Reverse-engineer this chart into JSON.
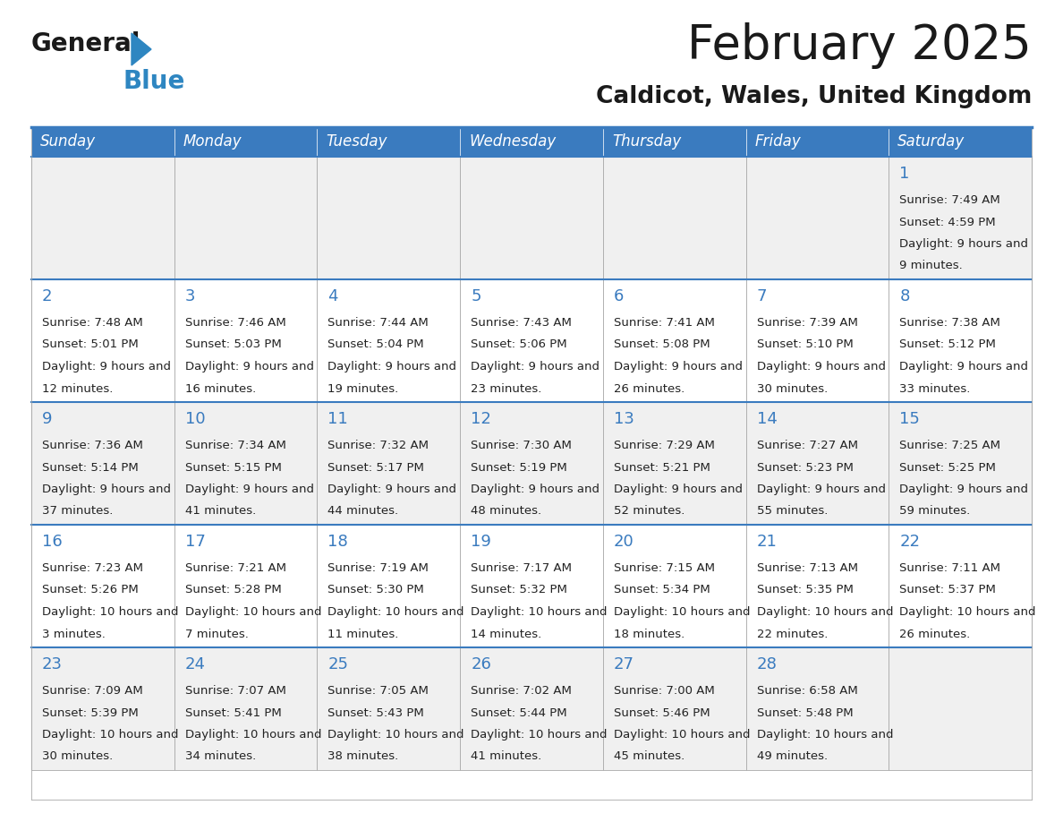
{
  "title": "February 2025",
  "subtitle": "Caldicot, Wales, United Kingdom",
  "header_bg_color": "#3a7bbf",
  "header_text_color": "#FFFFFF",
  "days_of_week": [
    "Sunday",
    "Monday",
    "Tuesday",
    "Wednesday",
    "Thursday",
    "Friday",
    "Saturday"
  ],
  "cell_bg_row0": "#F0F0F0",
  "cell_bg_row1": "#FFFFFF",
  "cell_border_color": "#AAAAAA",
  "header_border_color": "#3a7bbf",
  "title_color": "#1a1a1a",
  "subtitle_color": "#1a1a1a",
  "day_num_color": "#3a7bbf",
  "info_color": "#222222",
  "calendar_data": [
    [
      null,
      null,
      null,
      null,
      null,
      null,
      {
        "day": 1,
        "sunrise": "7:49 AM",
        "sunset": "4:59 PM",
        "daylight": "9 hours and 9 minutes"
      }
    ],
    [
      {
        "day": 2,
        "sunrise": "7:48 AM",
        "sunset": "5:01 PM",
        "daylight": "9 hours and 12 minutes"
      },
      {
        "day": 3,
        "sunrise": "7:46 AM",
        "sunset": "5:03 PM",
        "daylight": "9 hours and 16 minutes"
      },
      {
        "day": 4,
        "sunrise": "7:44 AM",
        "sunset": "5:04 PM",
        "daylight": "9 hours and 19 minutes"
      },
      {
        "day": 5,
        "sunrise": "7:43 AM",
        "sunset": "5:06 PM",
        "daylight": "9 hours and 23 minutes"
      },
      {
        "day": 6,
        "sunrise": "7:41 AM",
        "sunset": "5:08 PM",
        "daylight": "9 hours and 26 minutes"
      },
      {
        "day": 7,
        "sunrise": "7:39 AM",
        "sunset": "5:10 PM",
        "daylight": "9 hours and 30 minutes"
      },
      {
        "day": 8,
        "sunrise": "7:38 AM",
        "sunset": "5:12 PM",
        "daylight": "9 hours and 33 minutes"
      }
    ],
    [
      {
        "day": 9,
        "sunrise": "7:36 AM",
        "sunset": "5:14 PM",
        "daylight": "9 hours and 37 minutes"
      },
      {
        "day": 10,
        "sunrise": "7:34 AM",
        "sunset": "5:15 PM",
        "daylight": "9 hours and 41 minutes"
      },
      {
        "day": 11,
        "sunrise": "7:32 AM",
        "sunset": "5:17 PM",
        "daylight": "9 hours and 44 minutes"
      },
      {
        "day": 12,
        "sunrise": "7:30 AM",
        "sunset": "5:19 PM",
        "daylight": "9 hours and 48 minutes"
      },
      {
        "day": 13,
        "sunrise": "7:29 AM",
        "sunset": "5:21 PM",
        "daylight": "9 hours and 52 minutes"
      },
      {
        "day": 14,
        "sunrise": "7:27 AM",
        "sunset": "5:23 PM",
        "daylight": "9 hours and 55 minutes"
      },
      {
        "day": 15,
        "sunrise": "7:25 AM",
        "sunset": "5:25 PM",
        "daylight": "9 hours and 59 minutes"
      }
    ],
    [
      {
        "day": 16,
        "sunrise": "7:23 AM",
        "sunset": "5:26 PM",
        "daylight": "10 hours and 3 minutes"
      },
      {
        "day": 17,
        "sunrise": "7:21 AM",
        "sunset": "5:28 PM",
        "daylight": "10 hours and 7 minutes"
      },
      {
        "day": 18,
        "sunrise": "7:19 AM",
        "sunset": "5:30 PM",
        "daylight": "10 hours and 11 minutes"
      },
      {
        "day": 19,
        "sunrise": "7:17 AM",
        "sunset": "5:32 PM",
        "daylight": "10 hours and 14 minutes"
      },
      {
        "day": 20,
        "sunrise": "7:15 AM",
        "sunset": "5:34 PM",
        "daylight": "10 hours and 18 minutes"
      },
      {
        "day": 21,
        "sunrise": "7:13 AM",
        "sunset": "5:35 PM",
        "daylight": "10 hours and 22 minutes"
      },
      {
        "day": 22,
        "sunrise": "7:11 AM",
        "sunset": "5:37 PM",
        "daylight": "10 hours and 26 minutes"
      }
    ],
    [
      {
        "day": 23,
        "sunrise": "7:09 AM",
        "sunset": "5:39 PM",
        "daylight": "10 hours and 30 minutes"
      },
      {
        "day": 24,
        "sunrise": "7:07 AM",
        "sunset": "5:41 PM",
        "daylight": "10 hours and 34 minutes"
      },
      {
        "day": 25,
        "sunrise": "7:05 AM",
        "sunset": "5:43 PM",
        "daylight": "10 hours and 38 minutes"
      },
      {
        "day": 26,
        "sunrise": "7:02 AM",
        "sunset": "5:44 PM",
        "daylight": "10 hours and 41 minutes"
      },
      {
        "day": 27,
        "sunrise": "7:00 AM",
        "sunset": "5:46 PM",
        "daylight": "10 hours and 45 minutes"
      },
      {
        "day": 28,
        "sunrise": "6:58 AM",
        "sunset": "5:48 PM",
        "daylight": "10 hours and 49 minutes"
      },
      null
    ]
  ],
  "fig_width": 11.88,
  "fig_height": 9.18,
  "dpi": 100
}
